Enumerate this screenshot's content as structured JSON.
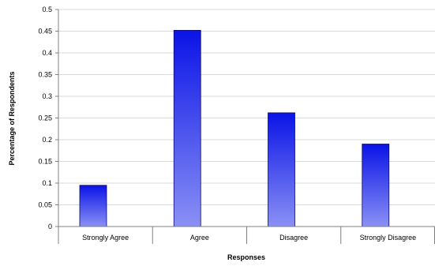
{
  "chart_data": {
    "type": "bar",
    "categories": [
      "Strongly Agree",
      "Agree",
      "Disagree",
      "Strongly Disagree"
    ],
    "values": [
      0.095,
      0.452,
      0.262,
      0.19
    ],
    "title": "",
    "xlabel": "Responses",
    "ylabel": "Percentage of Respondents",
    "ylim": [
      0,
      0.5
    ],
    "yticks": [
      "0",
      "0.05",
      "0.1",
      "0.15",
      "0.2",
      "0.25",
      "0.3",
      "0.35",
      "0.4",
      "0.45",
      "0.5"
    ],
    "grid": true,
    "legend": "none",
    "colors": {
      "bar_top": "#0a14e6",
      "bar_bottom": "#8a90f5",
      "grid": "#d9d9d9",
      "axis": "#808080"
    }
  }
}
